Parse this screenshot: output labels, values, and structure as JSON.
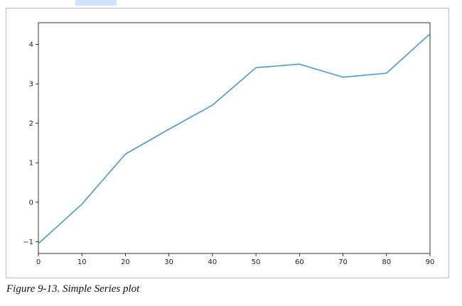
{
  "page": {
    "caption": "Figure 9-13. Simple Series plot"
  },
  "chart_data": {
    "type": "line",
    "x": [
      0,
      10,
      20,
      30,
      40,
      50,
      60,
      70,
      80,
      90
    ],
    "series": [
      {
        "values": [
          -1.05,
          -0.05,
          1.22,
          1.85,
          2.46,
          3.41,
          3.5,
          3.17,
          3.27,
          4.27
        ],
        "color": "#4c9bc7"
      }
    ],
    "title": "",
    "xlabel": "",
    "ylabel": "",
    "xlim": [
      0,
      90
    ],
    "ylim": [
      -1.3,
      4.55
    ],
    "xticks": [
      0,
      10,
      20,
      30,
      40,
      50,
      60,
      70,
      80,
      90
    ],
    "yticks": [
      -1,
      0,
      1,
      2,
      3,
      4
    ],
    "grid": false,
    "legend": "none"
  }
}
